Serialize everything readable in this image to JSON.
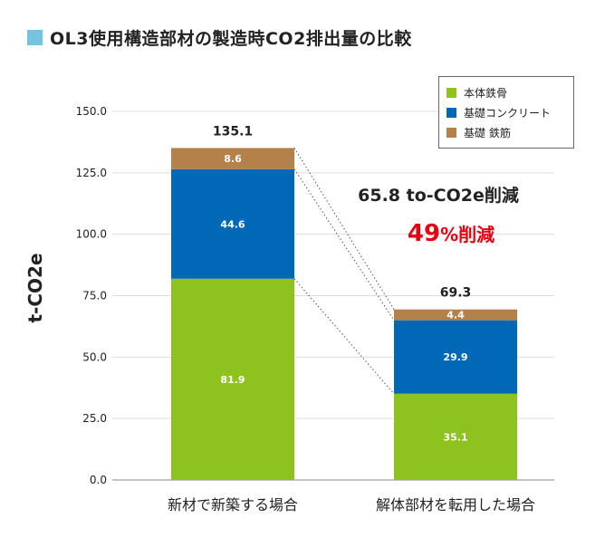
{
  "title": "OL3使用構造部材の製造時CO2排出量の比較",
  "colors": {
    "title_square": "#74c3df",
    "steel_frame": "#8dc21f",
    "concrete": "#0068b7",
    "rebar": "#b5814a",
    "reduction": "#e60012"
  },
  "annotation": {
    "line1": "65.8 to-CO2e削減",
    "line2_number": "49",
    "line2_unit": "%削減"
  },
  "chart_data": {
    "type": "bar",
    "stacked": true,
    "categories": [
      "新材で新築する場合",
      "解体部材を転用した場合"
    ],
    "series": [
      {
        "name": "本体鉄骨",
        "color": "#8dc21f",
        "values": [
          81.9,
          35.1
        ]
      },
      {
        "name": "基礎コンクリート",
        "color": "#0068b7",
        "values": [
          44.6,
          29.9
        ]
      },
      {
        "name": "基礎 鉄筋",
        "color": "#b5814a",
        "values": [
          8.6,
          4.4
        ]
      }
    ],
    "totals": [
      "135.1",
      "69.3"
    ],
    "ylabel": "t-CO2e",
    "ylim": [
      0,
      150
    ],
    "yticks": [
      "0.0",
      "25.0",
      "50.0",
      "75.0",
      "100.0",
      "125.0",
      "150.0"
    ],
    "grid": true,
    "legend_position": "top-right"
  }
}
